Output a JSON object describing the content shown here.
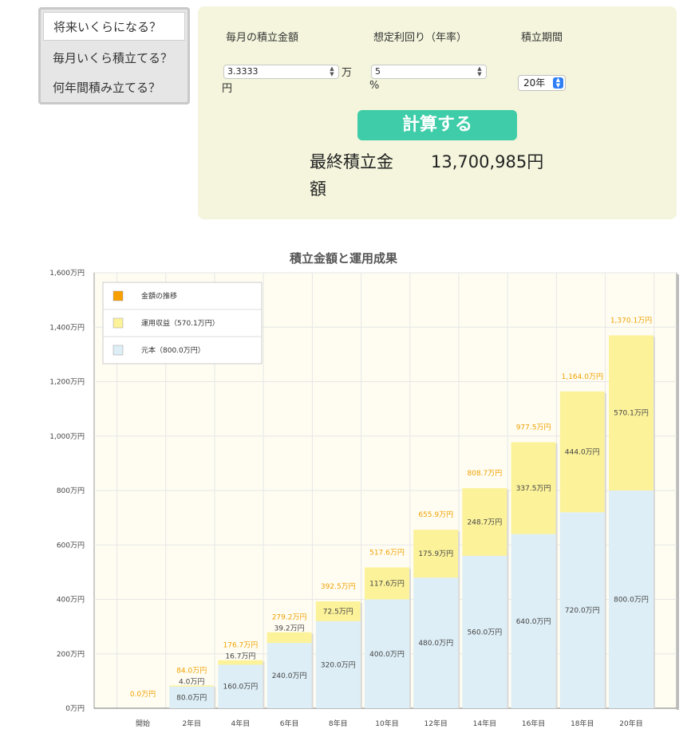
{
  "menu": {
    "items": [
      {
        "label": "将来いくらになる？",
        "active": true
      },
      {
        "label": "毎月いくら積立てる？",
        "active": false
      },
      {
        "label": "何年間積み立てる？",
        "active": false
      }
    ]
  },
  "form": {
    "monthly": {
      "label": "毎月の積立金額",
      "value": "3.3333",
      "unit_line1": "万",
      "unit_line2": "円"
    },
    "rate": {
      "label": "想定利回り（年率）",
      "value": "5",
      "unit": "%"
    },
    "period": {
      "label": "積立期間",
      "selected": "20年"
    },
    "button_label": "計算する",
    "result_label": "最終積立金額",
    "result_value": "13,700,985円"
  },
  "colors": {
    "panel_bg": "#f4f5dc",
    "button": "#3ecda8",
    "principal": "#ddeef6",
    "gain": "#fcf29a",
    "total_label": "#f0a000",
    "plot_bg": "#fffdf2"
  },
  "chart_data": {
    "type": "bar",
    "title": "積立金額と運用成果",
    "categories": [
      "開始",
      "2年目",
      "4年目",
      "6年目",
      "8年目",
      "10年目",
      "12年目",
      "14年目",
      "16年目",
      "18年目",
      "20年目"
    ],
    "ylim": [
      0,
      1600
    ],
    "yticks": [
      0,
      200,
      400,
      600,
      800,
      1000,
      1200,
      1400,
      1600
    ],
    "ytick_labels": [
      "0万円",
      "200万円",
      "400万円",
      "600万円",
      "800万円",
      "1,000万円",
      "1,200万円",
      "1,400万円",
      "1,600万円"
    ],
    "series": [
      {
        "name": "元本（800.0万円）",
        "stack": "principal",
        "values": [
          0,
          80.0,
          160.0,
          240.0,
          320.0,
          400.0,
          480.0,
          560.0,
          640.0,
          720.0,
          800.0
        ],
        "labels": [
          "",
          "80.0万円",
          "160.0万円",
          "240.0万円",
          "320.0万円",
          "400.0万円",
          "480.0万円",
          "560.0万円",
          "640.0万円",
          "720.0万円",
          "800.0万円"
        ]
      },
      {
        "name": "運用収益（570.1万円）",
        "stack": "gain",
        "values": [
          0,
          4.0,
          16.7,
          39.2,
          72.5,
          117.6,
          175.9,
          248.7,
          337.5,
          444.0,
          570.1
        ],
        "labels": [
          "",
          "4.0万円",
          "16.7万円",
          "39.2万円",
          "72.5万円",
          "117.6万円",
          "175.9万円",
          "248.7万円",
          "337.5万円",
          "444.0万円",
          "570.1万円"
        ]
      },
      {
        "name": "金額の推移",
        "stack": "total",
        "values": [
          0.0,
          84.0,
          176.7,
          279.2,
          392.5,
          517.6,
          655.9,
          808.7,
          977.5,
          1164.0,
          1370.1
        ],
        "labels": [
          "0.0万円",
          "84.0万円",
          "176.7万円",
          "279.2万円",
          "392.5万円",
          "517.6万円",
          "655.9万円",
          "808.7万円",
          "977.5万円",
          "1,164.0万円",
          "1,370.1万円"
        ]
      }
    ],
    "legend": {
      "placement": "top-left",
      "entries": [
        "金額の推移",
        "運用収益（570.1万円）",
        "元本（800.0万円）"
      ]
    },
    "grid": true
  }
}
